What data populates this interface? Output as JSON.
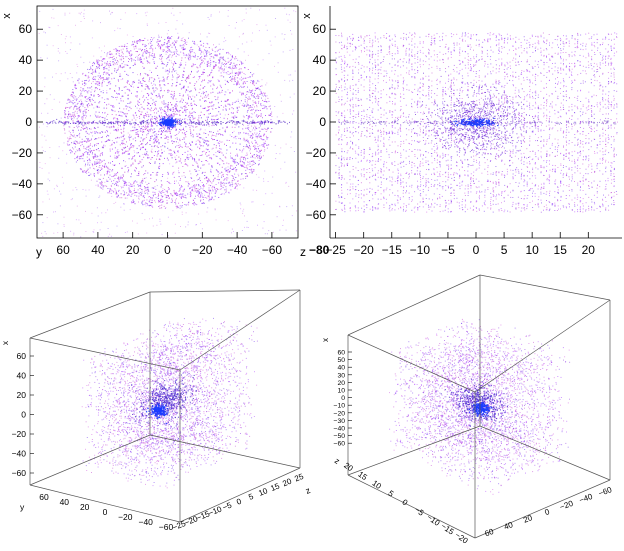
{
  "colors": {
    "point_primary": "#8a2be2",
    "point_secondary": "#c040d0",
    "core": "#1a3cff",
    "axis": "#000000",
    "frame": "#555555"
  },
  "chart_data": [
    {
      "type": "scatter",
      "panel": "top-left",
      "xlabel": "y",
      "ylabel": "x",
      "x_ticks": [
        "60",
        "40",
        "20",
        "0",
        "−20",
        "−40",
        "−60"
      ],
      "y_ticks": [
        "60",
        "40",
        "20",
        "0",
        "−20",
        "−40",
        "−60"
      ],
      "xlim": [
        75,
        -75
      ],
      "ylim": [
        -75,
        75
      ],
      "x_reversed": true,
      "grid": false,
      "description_shape": "disk of radius ~60 with radial spokes, dense core near (0,0)"
    },
    {
      "type": "scatter",
      "panel": "top-right",
      "xlabel": "z",
      "ylabel": "x",
      "x_ticks": [
        "−25",
        "−20",
        "−15",
        "−10",
        "−5",
        "0",
        "5",
        "10",
        "15",
        "20"
      ],
      "y_ticks": [
        "60",
        "40",
        "20",
        "0",
        "−20",
        "−40",
        "−60"
      ],
      "xlim": [
        -26,
        26
      ],
      "ylim": [
        -75,
        75
      ],
      "grid": false,
      "extra_label_left": "−80"
    },
    {
      "type": "scatter",
      "panel": "bottom-left",
      "projection": "3d",
      "labels": {
        "x": "x",
        "y": "y",
        "z": "z"
      },
      "x_ticks": [
        "60",
        "40",
        "20",
        "0",
        "−20",
        "−40",
        "−60"
      ],
      "y_ticks": [
        "60",
        "40",
        "20",
        "0",
        "−20",
        "−40",
        "−60"
      ],
      "z_ticks": [
        "−25",
        "−20",
        "−15",
        "−10",
        "−5",
        "0",
        "5",
        "10",
        "15",
        "20",
        "25"
      ],
      "grid": false
    },
    {
      "type": "scatter",
      "panel": "bottom-right",
      "projection": "3d",
      "labels": {
        "x": "x",
        "z": "z"
      },
      "x_ticks": [
        "60",
        "50",
        "40",
        "30",
        "20",
        "10",
        "0",
        "−10",
        "−20",
        "−30",
        "−40",
        "−50",
        "−60"
      ],
      "y_ticks": [
        "60",
        "40",
        "20",
        "0",
        "−20",
        "−40",
        "−60"
      ],
      "z_ticks": [
        "20",
        "15",
        "10",
        "5",
        "0",
        "−5",
        "−10",
        "−15",
        "−20"
      ],
      "grid": false
    }
  ]
}
